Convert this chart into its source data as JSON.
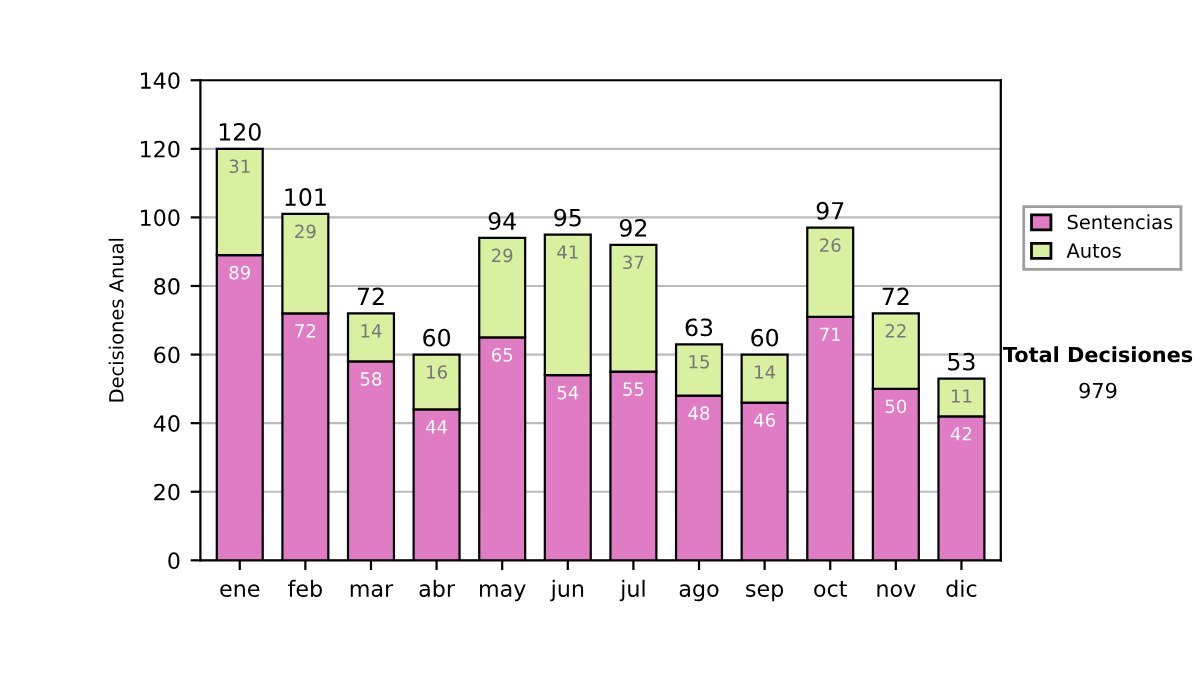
{
  "chart_data": {
    "type": "bar",
    "stacked": true,
    "ylabel": "Decisiones Anual",
    "categories": [
      "ene",
      "feb",
      "mar",
      "abr",
      "may",
      "jun",
      "jul",
      "ago",
      "sep",
      "oct",
      "nov",
      "dic"
    ],
    "series": [
      {
        "name": "Sentencias",
        "color": "#e07cc4",
        "values": [
          89,
          72,
          58,
          44,
          65,
          54,
          55,
          48,
          46,
          71,
          50,
          42
        ]
      },
      {
        "name": "Autos",
        "color": "#d8f0a0",
        "values": [
          31,
          29,
          14,
          16,
          29,
          41,
          37,
          15,
          14,
          26,
          22,
          11
        ]
      }
    ],
    "totals": [
      "120",
      "101",
      "72",
      "60",
      "94",
      "95",
      "92",
      "63",
      "60",
      "97",
      "72",
      "53"
    ],
    "data_labels": true,
    "ylim": [
      0,
      140
    ],
    "yticks": [
      0,
      20,
      40,
      60,
      80,
      100,
      120,
      140
    ],
    "grid": "y",
    "legend": "right",
    "annotations": [
      "Total Decisiones",
      "979"
    ]
  }
}
